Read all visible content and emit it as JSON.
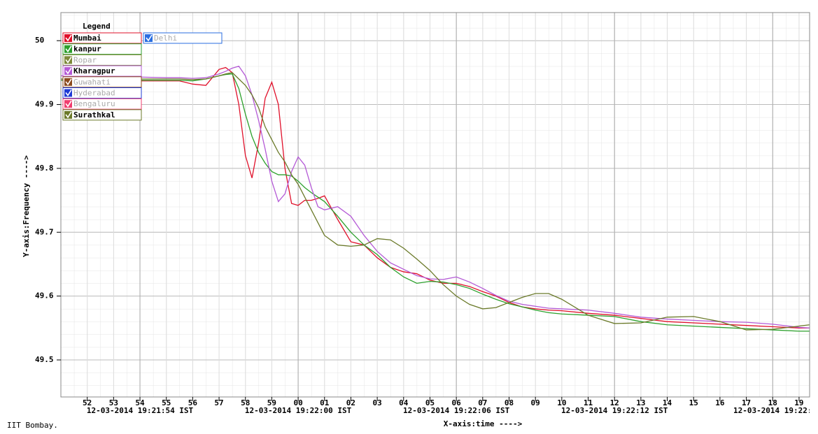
{
  "chart_data": {
    "type": "line",
    "y_label": "Y-axis:Frequency ---->",
    "x_label": "X-axis:time ---->",
    "footer": "IIT Bombay.",
    "legend_title": "Legend",
    "x": [
      51,
      52,
      53,
      54,
      55,
      55.5,
      56,
      56.5,
      57,
      57.25,
      57.5,
      57.75,
      58,
      58.25,
      58.5,
      58.75,
      59,
      59.25,
      59.5,
      59.75,
      60,
      60.25,
      60.5,
      60.75,
      61,
      61.5,
      62,
      62.5,
      63,
      63.5,
      64,
      64.5,
      65,
      65.5,
      66,
      66.5,
      67,
      67.5,
      68,
      68.5,
      69,
      69.5,
      70,
      71,
      72,
      73,
      74,
      75,
      76,
      77,
      78,
      79,
      79.4
    ],
    "series": [
      {
        "name": "Mumbai",
        "color": "#e0102a",
        "values": [
          49.938,
          49.938,
          49.937,
          49.937,
          49.937,
          49.937,
          49.932,
          49.93,
          49.955,
          49.958,
          49.95,
          49.9,
          49.82,
          49.785,
          49.84,
          49.91,
          49.935,
          49.9,
          49.8,
          49.745,
          49.742,
          49.75,
          49.75,
          49.753,
          49.757,
          49.72,
          49.685,
          49.68,
          49.66,
          49.645,
          49.638,
          49.635,
          49.625,
          49.62,
          49.62,
          49.615,
          49.607,
          49.6,
          49.59,
          49.583,
          49.58,
          49.578,
          49.577,
          49.573,
          49.57,
          49.565,
          49.56,
          49.558,
          49.556,
          49.554,
          49.552,
          49.55,
          49.55
        ]
      },
      {
        "name": "kanpur",
        "color": "#2ca02c",
        "values": [
          49.938,
          49.938,
          49.938,
          49.938,
          49.938,
          49.938,
          49.937,
          49.94,
          49.945,
          49.947,
          49.948,
          49.925,
          49.885,
          49.85,
          49.825,
          49.808,
          49.795,
          49.79,
          49.79,
          49.788,
          49.78,
          49.77,
          49.762,
          49.755,
          49.748,
          49.725,
          49.7,
          49.68,
          49.665,
          49.645,
          49.63,
          49.62,
          49.623,
          49.622,
          49.618,
          49.612,
          49.603,
          49.595,
          49.588,
          49.583,
          49.578,
          49.574,
          49.572,
          49.57,
          49.568,
          49.56,
          49.555,
          49.553,
          49.551,
          49.549,
          49.547,
          49.545,
          49.545
        ]
      },
      {
        "name": "Kharagpur",
        "color": "#b45ad6",
        "values": [
          49.945,
          49.944,
          49.944,
          49.943,
          49.942,
          49.942,
          49.941,
          49.942,
          49.948,
          49.952,
          49.957,
          49.96,
          49.945,
          49.915,
          49.875,
          49.83,
          49.78,
          49.748,
          49.76,
          49.795,
          49.818,
          49.805,
          49.77,
          49.74,
          49.735,
          49.74,
          49.725,
          49.695,
          49.67,
          49.652,
          49.642,
          49.632,
          49.627,
          49.626,
          49.63,
          49.622,
          49.612,
          49.601,
          49.592,
          49.587,
          49.584,
          49.581,
          49.58,
          49.578,
          49.573,
          49.567,
          49.564,
          49.562,
          49.56,
          49.559,
          49.556,
          49.551,
          49.55
        ]
      },
      {
        "name": "Surathkal",
        "color": "#6b7a2a",
        "values": [
          49.94,
          49.94,
          49.94,
          49.94,
          49.94,
          49.94,
          49.939,
          49.94,
          49.945,
          49.948,
          49.95,
          49.94,
          49.93,
          49.915,
          49.895,
          49.865,
          49.845,
          49.825,
          49.81,
          49.79,
          49.775,
          49.755,
          49.735,
          49.715,
          49.695,
          49.68,
          49.678,
          49.68,
          49.69,
          49.688,
          49.675,
          49.658,
          49.64,
          49.618,
          49.6,
          49.587,
          49.58,
          49.582,
          49.59,
          49.598,
          49.604,
          49.604,
          49.595,
          49.57,
          49.557,
          49.558,
          49.567,
          49.568,
          49.56,
          49.547,
          49.548,
          49.553,
          49.555
        ]
      }
    ],
    "disabled_series": [
      {
        "name": "Delhi",
        "color": "#2a6ee0"
      },
      {
        "name": "Ropar",
        "color": "#7d8a3a"
      },
      {
        "name": "Guwahati",
        "color": "#8b4a1e"
      },
      {
        "name": "Hyderabad",
        "color": "#1f3bd6"
      },
      {
        "name": "Bengaluru",
        "color": "#f03c6e"
      }
    ],
    "xlim": [
      51,
      79.4
    ],
    "ylim": [
      49.442,
      50.044
    ],
    "yticks": [
      {
        "value": 49.5,
        "label": "49.5"
      },
      {
        "value": 49.6,
        "label": "49.6"
      },
      {
        "value": 49.7,
        "label": "49.7"
      },
      {
        "value": 49.8,
        "label": "49.8"
      },
      {
        "value": 49.9,
        "label": "49.9"
      },
      50
    ],
    "xticks": [
      52,
      53,
      54,
      55,
      56,
      57,
      58,
      59,
      {
        "value": 60,
        "label": "00"
      },
      {
        "value": 61,
        "label": "01"
      },
      {
        "value": 62,
        "label": "02"
      },
      {
        "value": 63,
        "label": "03"
      },
      {
        "value": 64,
        "label": "04"
      },
      {
        "value": 65,
        "label": "05"
      },
      {
        "value": 66,
        "label": "06"
      },
      {
        "value": 67,
        "label": "07"
      },
      {
        "value": 68,
        "label": "08"
      },
      {
        "value": 69,
        "label": "09"
      },
      {
        "value": 70,
        "label": "10"
      },
      {
        "value": 71,
        "label": "11"
      },
      {
        "value": 72,
        "label": "12"
      },
      {
        "value": 73,
        "label": "13"
      },
      {
        "value": 74,
        "label": "14"
      },
      {
        "value": 75,
        "label": "15"
      },
      {
        "value": 76,
        "label": "16"
      },
      {
        "value": 77,
        "label": "17"
      },
      {
        "value": 78,
        "label": "18"
      },
      {
        "value": 79,
        "label": "19"
      }
    ],
    "x_dates": [
      {
        "value": 54,
        "label": "12-03-2014 19:21:54 IST"
      },
      {
        "value": 60,
        "label": "12-03-2014 19:22:00 IST"
      },
      {
        "value": 66,
        "label": "12-03-2014 19:22:06 IST"
      },
      {
        "value": 72,
        "label": "12-03-2014 19:22:12 IST"
      },
      {
        "value": 78,
        "label": "12-03-2014 19:22:"
      }
    ],
    "grid": true,
    "minor_grid": true
  }
}
